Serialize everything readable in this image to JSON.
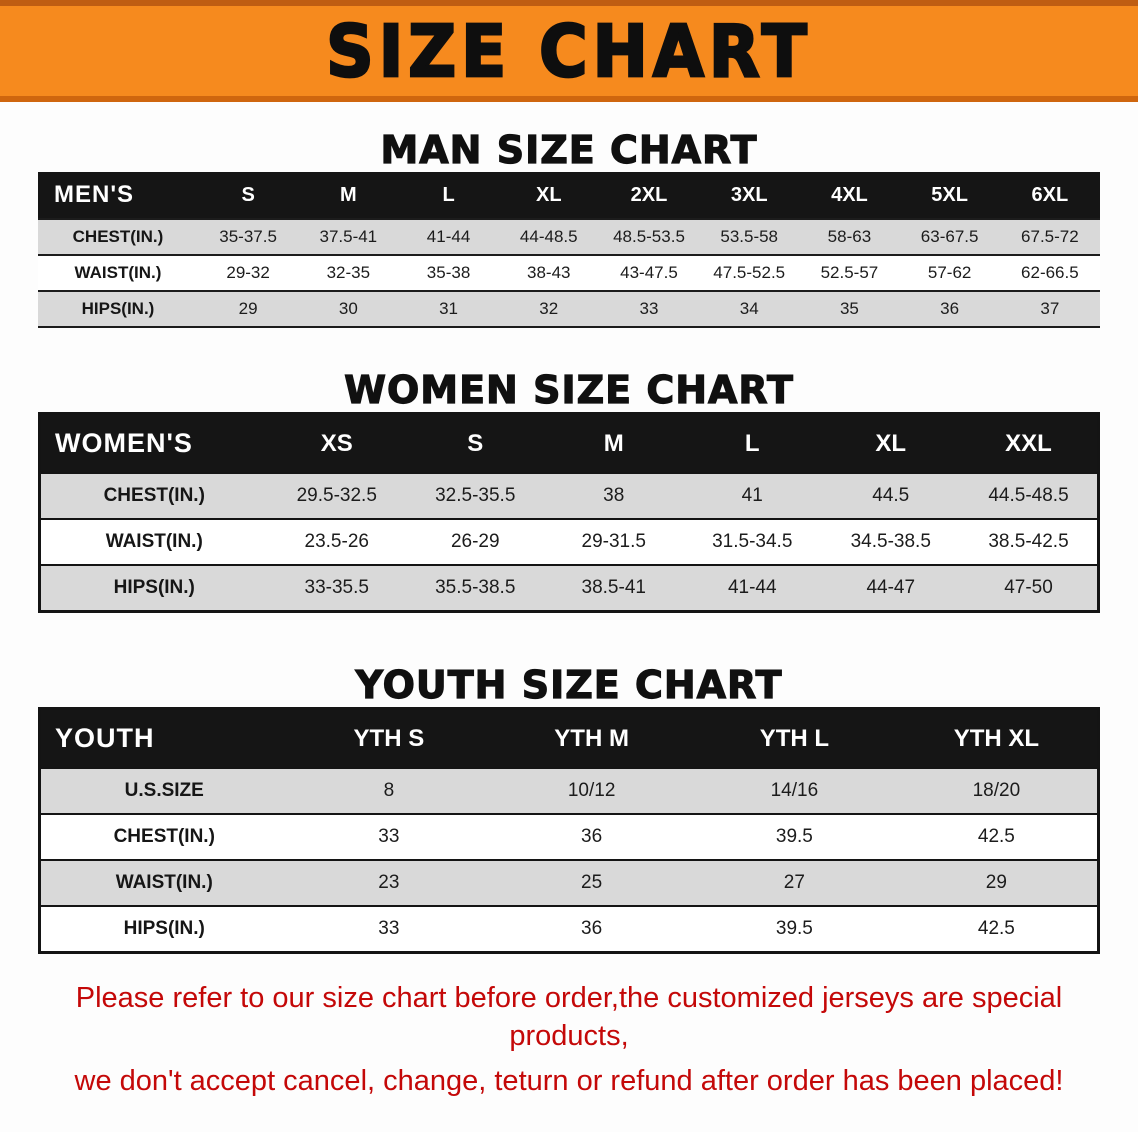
{
  "banner": {
    "title": "SIZE CHART",
    "background_color": "#f68a1e",
    "title_color": "#0e0e0e"
  },
  "chart_data": [
    {
      "type": "table",
      "title": "MAN SIZE CHART",
      "corner_label": "MEN'S",
      "columns": [
        "S",
        "M",
        "L",
        "XL",
        "2XL",
        "3XL",
        "4XL",
        "5XL",
        "6XL"
      ],
      "rows": [
        {
          "label": "CHEST(IN.)",
          "values": [
            "35-37.5",
            "37.5-41",
            "41-44",
            "44-48.5",
            "48.5-53.5",
            "53.5-58",
            "58-63",
            "63-67.5",
            "67.5-72"
          ]
        },
        {
          "label": "WAIST(IN.)",
          "values": [
            "29-32",
            "32-35",
            "35-38",
            "38-43",
            "43-47.5",
            "47.5-52.5",
            "52.5-57",
            "57-62",
            "62-66.5"
          ]
        },
        {
          "label": "HIPS(IN.)",
          "values": [
            "29",
            "30",
            "31",
            "32",
            "33",
            "34",
            "35",
            "36",
            "37"
          ]
        }
      ]
    },
    {
      "type": "table",
      "title": "WOMEN SIZE CHART",
      "corner_label": "WOMEN'S",
      "columns": [
        "XS",
        "S",
        "M",
        "L",
        "XL",
        "XXL"
      ],
      "rows": [
        {
          "label": "CHEST(IN.)",
          "values": [
            "29.5-32.5",
            "32.5-35.5",
            "38",
            "41",
            "44.5",
            "44.5-48.5"
          ]
        },
        {
          "label": "WAIST(IN.)",
          "values": [
            "23.5-26",
            "26-29",
            "29-31.5",
            "31.5-34.5",
            "34.5-38.5",
            "38.5-42.5"
          ]
        },
        {
          "label": "HIPS(IN.)",
          "values": [
            "33-35.5",
            "35.5-38.5",
            "38.5-41",
            "41-44",
            "44-47",
            "47-50"
          ]
        }
      ]
    },
    {
      "type": "table",
      "title": "YOUTH SIZE CHART",
      "corner_label": "YOUTH",
      "columns": [
        "YTH S",
        "YTH M",
        "YTH L",
        "YTH XL"
      ],
      "rows": [
        {
          "label": "U.S.SIZE",
          "values": [
            "8",
            "10/12",
            "14/16",
            "18/20"
          ]
        },
        {
          "label": "CHEST(IN.)",
          "values": [
            "33",
            "36",
            "39.5",
            "42.5"
          ]
        },
        {
          "label": "WAIST(IN.)",
          "values": [
            "23",
            "25",
            "27",
            "29"
          ]
        },
        {
          "label": "HIPS(IN.)",
          "values": [
            "33",
            "36",
            "39.5",
            "42.5"
          ]
        }
      ]
    }
  ],
  "note": {
    "line1": "Please refer to our size chart before order,the customized jerseys are special products,",
    "line2": "we don't accept cancel, change, teturn or refund after order has been placed!",
    "text_color": "#c40808"
  }
}
